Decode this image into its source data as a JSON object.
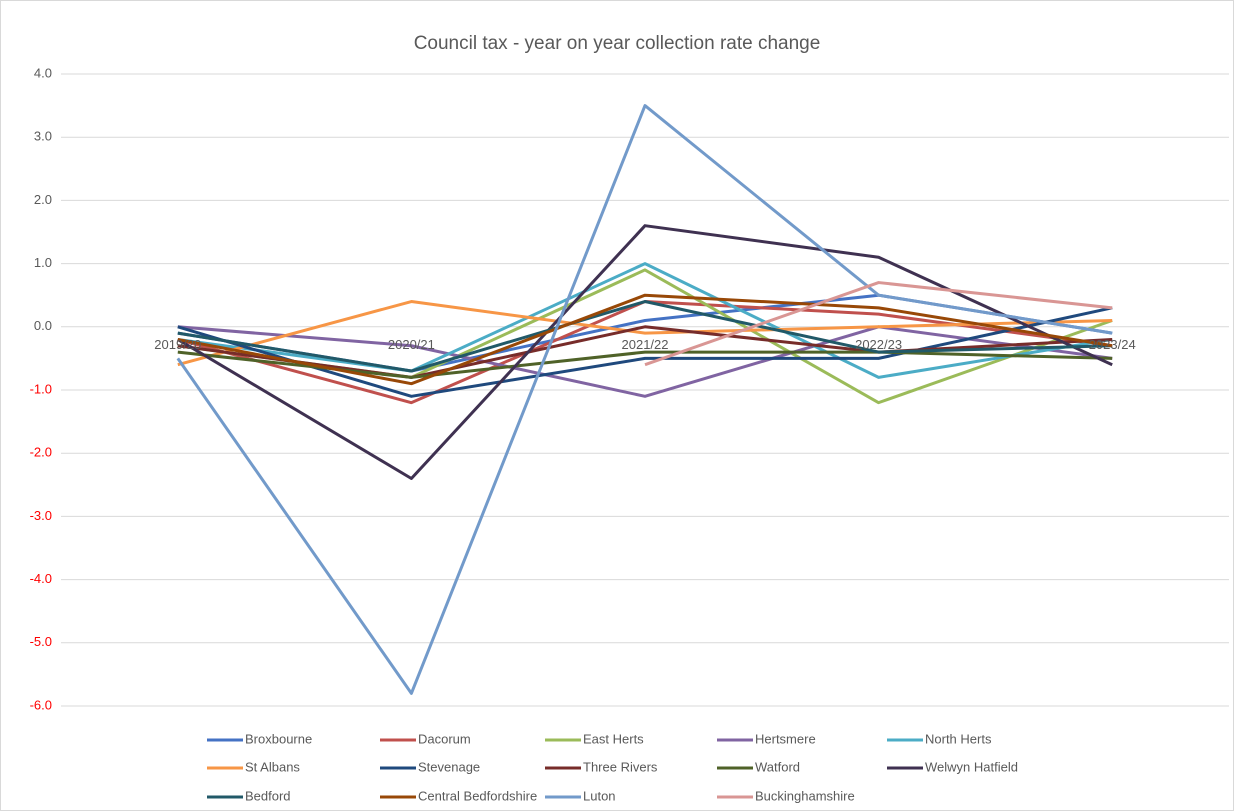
{
  "chart_data": {
    "type": "line",
    "title": "Council  tax - year on year collection rate change",
    "categories": [
      "2019/20",
      "2020/21",
      "2021/22",
      "2022/23",
      "2023/24"
    ],
    "series": [
      {
        "name": "Broxbourne",
        "color": "#4472c4",
        "values": [
          -0.1,
          -0.7,
          0.1,
          0.5,
          -0.1
        ]
      },
      {
        "name": "Dacorum",
        "color": "#c0504d",
        "values": [
          -0.2,
          -1.2,
          0.4,
          0.2,
          -0.3
        ]
      },
      {
        "name": "East Herts",
        "color": "#9bbb59",
        "values": [
          -0.3,
          -0.8,
          0.9,
          -1.2,
          0.1
        ]
      },
      {
        "name": "Hertsmere",
        "color": "#8064a2",
        "values": [
          0.0,
          -0.3,
          -1.1,
          0.0,
          -0.5
        ]
      },
      {
        "name": "North Herts",
        "color": "#4bacc6",
        "values": [
          -0.2,
          -0.7,
          1.0,
          -0.8,
          -0.2
        ]
      },
      {
        "name": "St Albans",
        "color": "#f79646",
        "values": [
          -0.6,
          0.4,
          -0.1,
          0.0,
          0.1
        ]
      },
      {
        "name": "Stevenage",
        "color": "#1f497d",
        "values": [
          0.0,
          -1.1,
          -0.5,
          -0.5,
          0.3
        ]
      },
      {
        "name": "Three Rivers",
        "color": "#772c2a",
        "values": [
          -0.3,
          -0.8,
          0.0,
          -0.4,
          -0.2
        ]
      },
      {
        "name": "Watford",
        "color": "#4f6228",
        "values": [
          -0.4,
          -0.8,
          -0.4,
          -0.4,
          -0.5
        ]
      },
      {
        "name": "Welwyn Hatfield",
        "color": "#3f3151",
        "values": [
          -0.2,
          -2.4,
          1.6,
          1.1,
          -0.6
        ]
      },
      {
        "name": "Bedford",
        "color": "#215968",
        "values": [
          -0.1,
          -0.7,
          0.4,
          -0.4,
          -0.3
        ]
      },
      {
        "name": "Central Bedfordshire",
        "color": "#984807",
        "values": [
          -0.2,
          -0.9,
          0.5,
          0.3,
          -0.3
        ]
      },
      {
        "name": "Luton",
        "color": "#729aca",
        "values": [
          -0.5,
          -5.8,
          3.5,
          0.5,
          -0.1
        ]
      },
      {
        "name": "Buckinghamshire",
        "color": "#d99694",
        "values": [
          null,
          null,
          -0.6,
          0.7,
          0.3
        ]
      }
    ],
    "ylim": [
      -6,
      4
    ],
    "yticks": [
      {
        "value": -6,
        "label": "-6.0"
      },
      {
        "value": -5,
        "label": "-5.0"
      },
      {
        "value": -4,
        "label": "-4.0"
      },
      {
        "value": -3,
        "label": "-3.0"
      },
      {
        "value": -2,
        "label": "-2.0"
      },
      {
        "value": -1,
        "label": "-1.0"
      },
      {
        "value": 0,
        "label": "0.0"
      },
      {
        "value": 1,
        "label": "1.0"
      },
      {
        "value": 2,
        "label": "2.0"
      },
      {
        "value": 3,
        "label": "3.0"
      },
      {
        "value": 4,
        "label": "4.0"
      }
    ],
    "grid": true,
    "legend": "bottom",
    "negative_tick_color": "#ff0000"
  }
}
